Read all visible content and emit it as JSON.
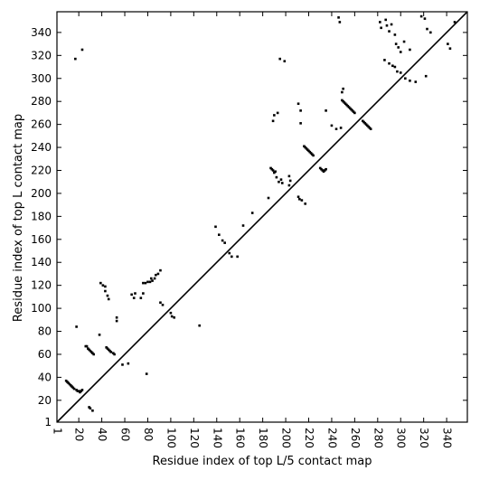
{
  "chart_data": {
    "type": "scatter",
    "xlabel": "Residue index of top L/5 contact map",
    "ylabel": "Residue index of top L contact map",
    "xlim": [
      1,
      358
    ],
    "ylim": [
      1,
      358
    ],
    "xticks": [
      1,
      20,
      40,
      60,
      80,
      100,
      120,
      140,
      160,
      180,
      200,
      220,
      240,
      260,
      280,
      300,
      320,
      340
    ],
    "yticks": [
      1,
      20,
      40,
      60,
      80,
      100,
      120,
      140,
      160,
      180,
      200,
      220,
      240,
      260,
      280,
      300,
      320,
      340
    ],
    "diagonal_line": true,
    "grid": false,
    "marker_color": "#000000",
    "series": [
      {
        "points_upper": [
          [
            18,
            84
          ],
          [
            23,
            325
          ],
          [
            17,
            317
          ],
          [
            39,
            122
          ],
          [
            41,
            120
          ],
          [
            43,
            119
          ],
          [
            43,
            115
          ],
          [
            45,
            111
          ],
          [
            46,
            108
          ],
          [
            53,
            92
          ],
          [
            53,
            89
          ],
          [
            63,
            52
          ],
          [
            66,
            112
          ],
          [
            68,
            109
          ],
          [
            69,
            113
          ],
          [
            74,
            109
          ],
          [
            76,
            113
          ],
          [
            76,
            122
          ],
          [
            78,
            122
          ],
          [
            80,
            123
          ],
          [
            82,
            123
          ],
          [
            83,
            126
          ],
          [
            84,
            124
          ],
          [
            86,
            126
          ],
          [
            87,
            129
          ],
          [
            89,
            130
          ],
          [
            91,
            133
          ],
          [
            139,
            171
          ],
          [
            142,
            164
          ],
          [
            145,
            159
          ],
          [
            147,
            157
          ],
          [
            151,
            148
          ],
          [
            153,
            145
          ],
          [
            158,
            145
          ],
          [
            163,
            172
          ],
          [
            171,
            183
          ],
          [
            185,
            196
          ],
          [
            189,
            263
          ],
          [
            190,
            268
          ],
          [
            193,
            270
          ],
          [
            195,
            317
          ],
          [
            199,
            315
          ],
          [
            203,
            215
          ],
          [
            204,
            211
          ],
          [
            211,
            278
          ],
          [
            213,
            272
          ],
          [
            213,
            261
          ],
          [
            235,
            272
          ],
          [
            246,
            353
          ],
          [
            247,
            349
          ],
          [
            249,
            288
          ],
          [
            250,
            291
          ],
          [
            282,
            349
          ],
          [
            283,
            344
          ],
          [
            287,
            351
          ],
          [
            288,
            346
          ],
          [
            290,
            341
          ],
          [
            292,
            347
          ],
          [
            295,
            338
          ],
          [
            296,
            330
          ],
          [
            298,
            327
          ],
          [
            300,
            323
          ],
          [
            303,
            332
          ],
          [
            308,
            325
          ],
          [
            318,
            354
          ],
          [
            321,
            352
          ],
          [
            323,
            343
          ],
          [
            326,
            340
          ],
          [
            341,
            330
          ],
          [
            343,
            326
          ],
          [
            347,
            349
          ],
          [
            248,
            257
          ],
          [
            244,
            256
          ],
          [
            240,
            259
          ]
        ],
        "points_lower": [
          [
            9,
            37
          ],
          [
            10,
            36
          ],
          [
            11,
            35
          ],
          [
            12,
            34
          ],
          [
            13,
            33
          ],
          [
            14,
            32
          ],
          [
            15,
            31
          ],
          [
            16,
            30
          ],
          [
            18,
            29
          ],
          [
            19,
            28
          ],
          [
            20,
            28
          ],
          [
            21,
            27
          ],
          [
            22,
            28
          ],
          [
            23,
            29
          ],
          [
            26,
            67
          ],
          [
            27,
            67
          ],
          [
            28,
            65
          ],
          [
            29,
            64
          ],
          [
            30,
            63
          ],
          [
            31,
            62
          ],
          [
            32,
            61
          ],
          [
            33,
            60
          ],
          [
            29,
            14
          ],
          [
            30,
            13
          ],
          [
            32,
            11
          ],
          [
            38,
            77
          ],
          [
            44,
            66
          ],
          [
            45,
            65
          ],
          [
            46,
            64
          ],
          [
            47,
            63
          ],
          [
            48,
            62
          ],
          [
            50,
            61
          ],
          [
            51,
            60
          ],
          [
            58,
            51
          ],
          [
            91,
            105
          ],
          [
            93,
            103
          ],
          [
            100,
            96
          ],
          [
            101,
            93
          ],
          [
            103,
            92
          ],
          [
            125,
            85
          ],
          [
            187,
            222
          ],
          [
            188,
            221
          ],
          [
            189,
            220
          ],
          [
            190,
            218
          ],
          [
            191,
            219
          ],
          [
            192,
            214
          ],
          [
            194,
            210
          ],
          [
            196,
            212
          ],
          [
            197,
            209
          ],
          [
            203,
            207
          ],
          [
            211,
            197
          ],
          [
            212,
            195
          ],
          [
            214,
            194
          ],
          [
            217,
            191
          ],
          [
            216,
            241
          ],
          [
            217,
            240
          ],
          [
            218,
            239
          ],
          [
            219,
            238
          ],
          [
            220,
            237
          ],
          [
            221,
            236
          ],
          [
            222,
            235
          ],
          [
            223,
            234
          ],
          [
            224,
            233
          ],
          [
            230,
            222
          ],
          [
            231,
            221
          ],
          [
            232,
            220
          ],
          [
            233,
            219
          ],
          [
            234,
            220
          ],
          [
            235,
            221
          ],
          [
            249,
            281
          ],
          [
            250,
            280
          ],
          [
            251,
            279
          ],
          [
            252,
            278
          ],
          [
            253,
            277
          ],
          [
            254,
            276
          ],
          [
            255,
            275
          ],
          [
            256,
            274
          ],
          [
            257,
            273
          ],
          [
            258,
            272
          ],
          [
            259,
            271
          ],
          [
            260,
            270
          ],
          [
            267,
            263
          ],
          [
            268,
            262
          ],
          [
            269,
            261
          ],
          [
            270,
            260
          ],
          [
            271,
            259
          ],
          [
            272,
            258
          ],
          [
            273,
            257
          ],
          [
            274,
            256
          ],
          [
            286,
            316
          ],
          [
            290,
            313
          ],
          [
            293,
            311
          ],
          [
            295,
            310
          ],
          [
            297,
            306
          ],
          [
            300,
            305
          ],
          [
            304,
            300
          ],
          [
            308,
            298
          ],
          [
            313,
            297
          ],
          [
            322,
            302
          ],
          [
            79,
            43
          ]
        ]
      }
    ]
  }
}
